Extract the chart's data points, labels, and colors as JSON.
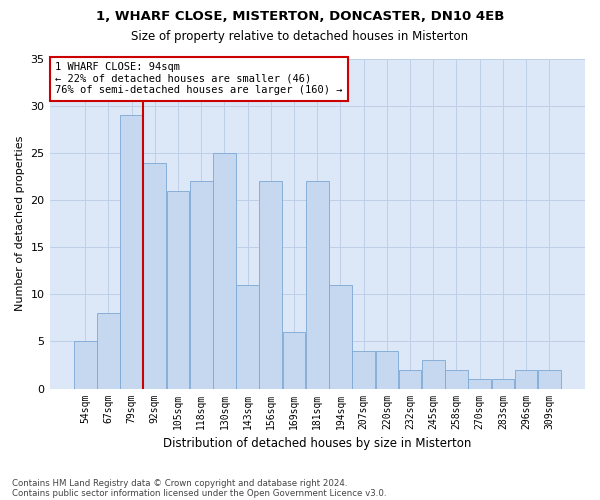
{
  "title1": "1, WHARF CLOSE, MISTERTON, DONCASTER, DN10 4EB",
  "title2": "Size of property relative to detached houses in Misterton",
  "xlabel": "Distribution of detached houses by size in Misterton",
  "ylabel": "Number of detached properties",
  "categories": [
    "54sqm",
    "67sqm",
    "79sqm",
    "92sqm",
    "105sqm",
    "118sqm",
    "130sqm",
    "143sqm",
    "156sqm",
    "169sqm",
    "181sqm",
    "194sqm",
    "207sqm",
    "220sqm",
    "232sqm",
    "245sqm",
    "258sqm",
    "270sqm",
    "283sqm",
    "296sqm",
    "309sqm"
  ],
  "values": [
    5,
    8,
    29,
    24,
    21,
    22,
    25,
    11,
    22,
    6,
    22,
    11,
    4,
    4,
    2,
    3,
    2,
    1,
    1,
    2,
    2
  ],
  "bar_color": "#c5d8f0",
  "bar_edge_color": "#7ca8d4",
  "vline_color": "#cc0000",
  "vline_x_index": 3,
  "annotation_text": "1 WHARF CLOSE: 94sqm\n← 22% of detached houses are smaller (46)\n76% of semi-detached houses are larger (160) →",
  "annotation_box_color": "#ffffff",
  "annotation_box_edge": "#cc0000",
  "grid_color": "#c0cfe8",
  "background_color": "#dce8f8",
  "footer1": "Contains HM Land Registry data © Crown copyright and database right 2024.",
  "footer2": "Contains public sector information licensed under the Open Government Licence v3.0.",
  "ylim": [
    0,
    35
  ],
  "yticks": [
    0,
    5,
    10,
    15,
    20,
    25,
    30,
    35
  ]
}
